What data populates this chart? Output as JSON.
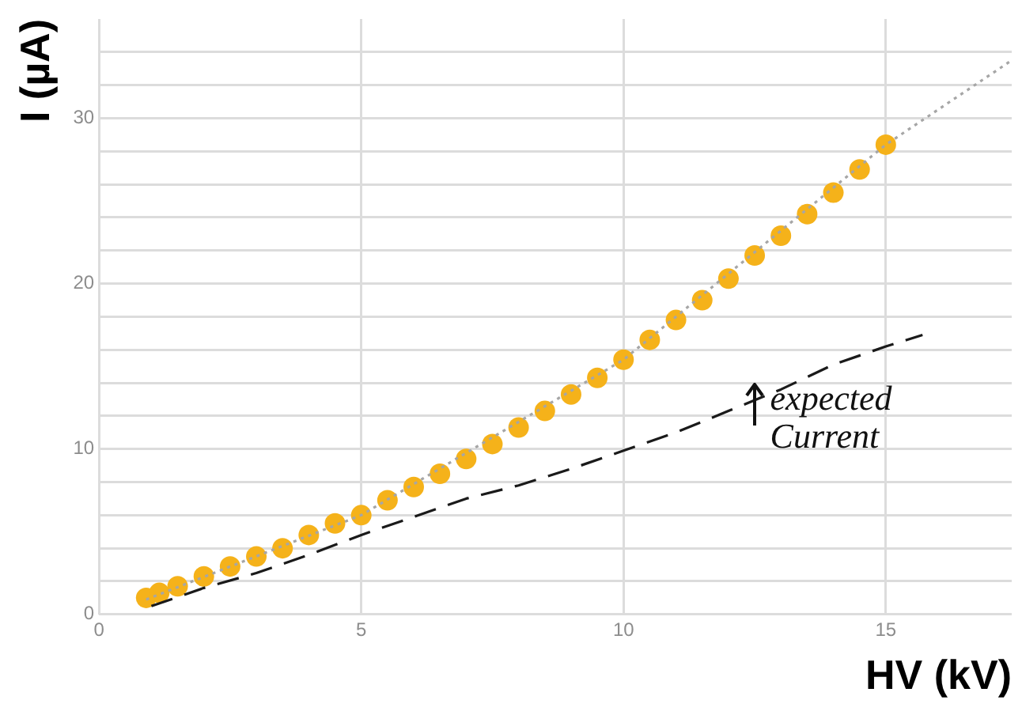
{
  "chart_data": {
    "type": "scatter",
    "xlabel": "HV (kV)",
    "ylabel": "I (µA)",
    "xlim": [
      0,
      17.4
    ],
    "xticks": [
      0,
      5,
      10,
      15
    ],
    "ylim": [
      0,
      36
    ],
    "yticks": [
      0,
      {
        "value": 2,
        "label": null
      },
      {
        "value": 4,
        "label": null
      },
      {
        "value": 6,
        "label": null
      },
      {
        "value": 8,
        "label": null
      },
      10,
      {
        "value": 12,
        "label": null
      },
      {
        "value": 14,
        "label": null
      },
      {
        "value": 16,
        "label": null
      },
      {
        "value": 18,
        "label": null
      },
      20,
      {
        "value": 22,
        "label": null
      },
      {
        "value": 24,
        "label": null
      },
      {
        "value": 26,
        "label": null
      },
      {
        "value": 28,
        "label": null
      },
      30,
      {
        "value": 32,
        "label": null
      },
      {
        "value": 34,
        "label": null
      }
    ],
    "grid": true,
    "legend": false,
    "series": [
      {
        "type": "line",
        "color": "#a6a6a6",
        "line_style": "dotted",
        "marker": "none",
        "x": [
          0.9,
          5,
          10,
          15,
          17.4
        ],
        "values": [
          0.9,
          6,
          15.4,
          28.4,
          33.5
        ]
      },
      {
        "type": "line",
        "color": "#1a1a1a",
        "line_style": "dashed",
        "marker": "none",
        "x": [
          1,
          2,
          3,
          4,
          5,
          6,
          7,
          8,
          9,
          10,
          11,
          12,
          13,
          14,
          15,
          15.7
        ],
        "values": [
          0.5,
          1.6,
          2.5,
          3.6,
          4.8,
          5.9,
          7,
          7.8,
          8.8,
          9.9,
          11,
          12.3,
          13.6,
          15.1,
          16.2,
          16.9
        ]
      },
      {
        "color": "#f5b21a",
        "marker": "circle",
        "x": [
          0.9,
          1.15,
          1.5,
          2,
          2.5,
          3,
          3.5,
          4,
          4.5,
          5,
          5.5,
          6,
          6.5,
          7,
          7.5,
          8,
          8.5,
          9,
          9.5,
          10,
          10.5,
          11,
          11.5,
          12,
          12.5,
          13,
          13.5,
          14,
          14.5,
          15
        ],
        "values": [
          1.0,
          1.3,
          1.7,
          2.3,
          2.9,
          3.5,
          4.0,
          4.8,
          5.5,
          6.0,
          6.9,
          7.7,
          8.5,
          9.4,
          10.3,
          11.3,
          12.3,
          13.3,
          14.3,
          15.4,
          16.6,
          17.8,
          19.0,
          20.3,
          21.7,
          22.9,
          24.2,
          25.5,
          26.9,
          28.4
        ]
      }
    ],
    "annotations": [
      "expected Current"
    ]
  }
}
